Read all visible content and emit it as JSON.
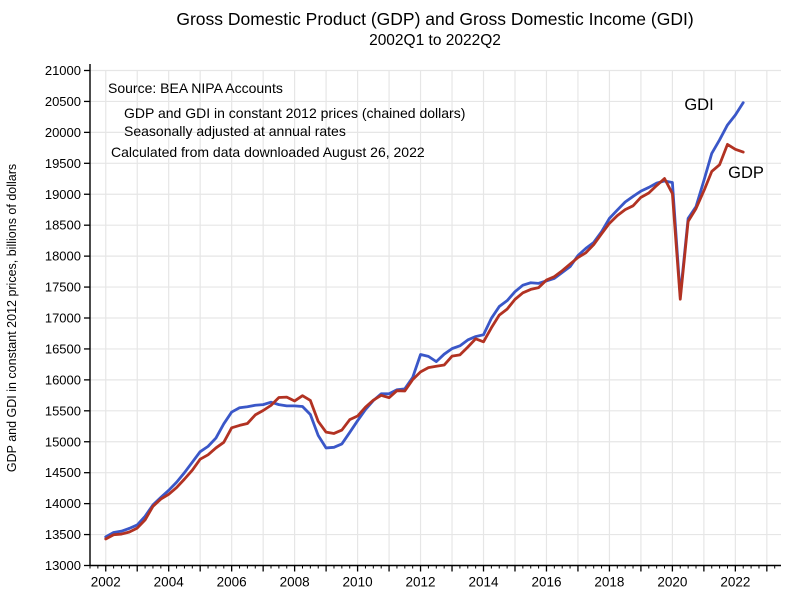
{
  "figure": {
    "title": "Gross Domestic Product (GDP) and Gross Domestic Income (GDI)",
    "subtitle": "2002Q1 to 2022Q2",
    "notes": {
      "source": "Source:  BEA NIPA Accounts",
      "prices": "GDP and GDI in constant 2012 prices (chained dollars)",
      "seasonal": "Seasonally adjusted at annual rates",
      "calculated": "Calculated from data downloaded August 26, 2022"
    }
  },
  "chart_data": {
    "type": "line",
    "title": "Gross Domestic Product (GDP) and Gross Domestic Income (GDI), 2002Q1 to 2022Q2",
    "xlabel": "",
    "ylabel": "GDP and GDI in constant 2012 prices, billions of dollars",
    "grid": true,
    "legend_position": "direct-labels-on-lines",
    "xlim": [
      2001.5,
      2023.45
    ],
    "ylim": [
      13000,
      21000
    ],
    "ytick_step": 500,
    "xtick_label_start": 2002,
    "xtick_label_step": 2,
    "xtick_label_end": 2022,
    "x_start": 2002.0,
    "x_step": 0.25,
    "x_end": 2022.25,
    "x_unit": "year (quarterly points)",
    "y_unit": "billions of chained 2012 dollars",
    "colors": {
      "gdi": "#3A57C8",
      "gdp": "#B23222",
      "grid": "#E6E6E6",
      "axis": "#000000"
    },
    "series": [
      {
        "name": "GDI",
        "color_key": "gdi",
        "label": {
          "text": "GDI",
          "x": 699,
          "y": 110
        },
        "values": [
          13462,
          13533,
          13555,
          13600,
          13655,
          13795,
          13980,
          14100,
          14215,
          14345,
          14500,
          14670,
          14840,
          14925,
          15060,
          15290,
          15480,
          15550,
          15565,
          15590,
          15600,
          15640,
          15600,
          15580,
          15580,
          15570,
          15440,
          15100,
          14900,
          14910,
          14965,
          15150,
          15340,
          15520,
          15665,
          15775,
          15775,
          15840,
          15855,
          16040,
          16410,
          16380,
          16295,
          16415,
          16505,
          16550,
          16645,
          16700,
          16730,
          16995,
          17185,
          17280,
          17425,
          17530,
          17570,
          17560,
          17600,
          17640,
          17735,
          17830,
          18010,
          18125,
          18220,
          18395,
          18610,
          18745,
          18875,
          18965,
          19050,
          19110,
          19180,
          19215,
          19190,
          17355,
          18610,
          18800,
          19220,
          19660,
          19880,
          20120,
          20280,
          20480
        ]
      },
      {
        "name": "GDP",
        "color_key": "gdp",
        "label": {
          "text": "GDP",
          "x": 746,
          "y": 178
        },
        "values": [
          13429,
          13497,
          13508,
          13541,
          13605,
          13736,
          13957,
          14074,
          14151,
          14260,
          14396,
          14540,
          14718,
          14789,
          14900,
          14991,
          15225,
          15264,
          15295,
          15434,
          15505,
          15588,
          15715,
          15721,
          15659,
          15744,
          15667,
          15328,
          15155,
          15134,
          15189,
          15357,
          15416,
          15558,
          15672,
          15750,
          15712,
          15825,
          15820,
          16004,
          16129,
          16198,
          16221,
          16240,
          16383,
          16404,
          16529,
          16664,
          16616,
          16842,
          17047,
          17144,
          17301,
          17407,
          17462,
          17491,
          17613,
          17668,
          17764,
          17872,
          17977,
          18054,
          18185,
          18360,
          18530,
          18654,
          18752,
          18813,
          18950,
          19020,
          19141,
          19254,
          19011,
          17303,
          18561,
          18768,
          19055,
          19368,
          19478,
          19806,
          19727,
          19681
        ]
      }
    ]
  }
}
